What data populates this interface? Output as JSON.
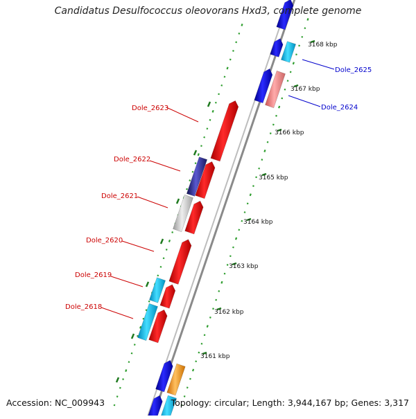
{
  "title": "Candidatus Desulfococcus oleovorans Hxd3, complete genome",
  "footer": {
    "accession": "Accession: NC_009943",
    "summary": "Topology: circular; Length: 3,944,167 bp; Genes: 3,317"
  },
  "ticks": [
    "3161 kbp",
    "3162 kbp",
    "3163 kbp",
    "3164 kbp",
    "3165 kbp",
    "3166 kbp",
    "3167 kbp",
    "3168 kbp"
  ],
  "genes": [
    {
      "label": "Dole_2625",
      "strand": "plus",
      "color": "#0000cc"
    },
    {
      "label": "Dole_2624",
      "strand": "plus",
      "color": "#0000cc"
    },
    {
      "label": "Dole_2623",
      "strand": "minus",
      "color": "#cc0000"
    },
    {
      "label": "Dole_2622",
      "strand": "minus",
      "color": "#cc0000"
    },
    {
      "label": "Dole_2621",
      "strand": "minus",
      "color": "#cc0000"
    },
    {
      "label": "Dole_2620",
      "strand": "minus",
      "color": "#cc0000"
    },
    {
      "label": "Dole_2619",
      "strand": "minus",
      "color": "#cc0000"
    },
    {
      "label": "Dole_2618",
      "strand": "minus",
      "color": "#cc0000"
    }
  ],
  "feature_colors": {
    "cds_forward": "#1a1aee",
    "cds_reverse": "#ee1111",
    "rna_cyan": "#22bbee",
    "light_red": "#ee8080",
    "grey": "#c0c0c0",
    "navy": "#22228a",
    "orange": "#ff9a00",
    "backbone": "#888888",
    "gc_marks": "#33aa33"
  }
}
